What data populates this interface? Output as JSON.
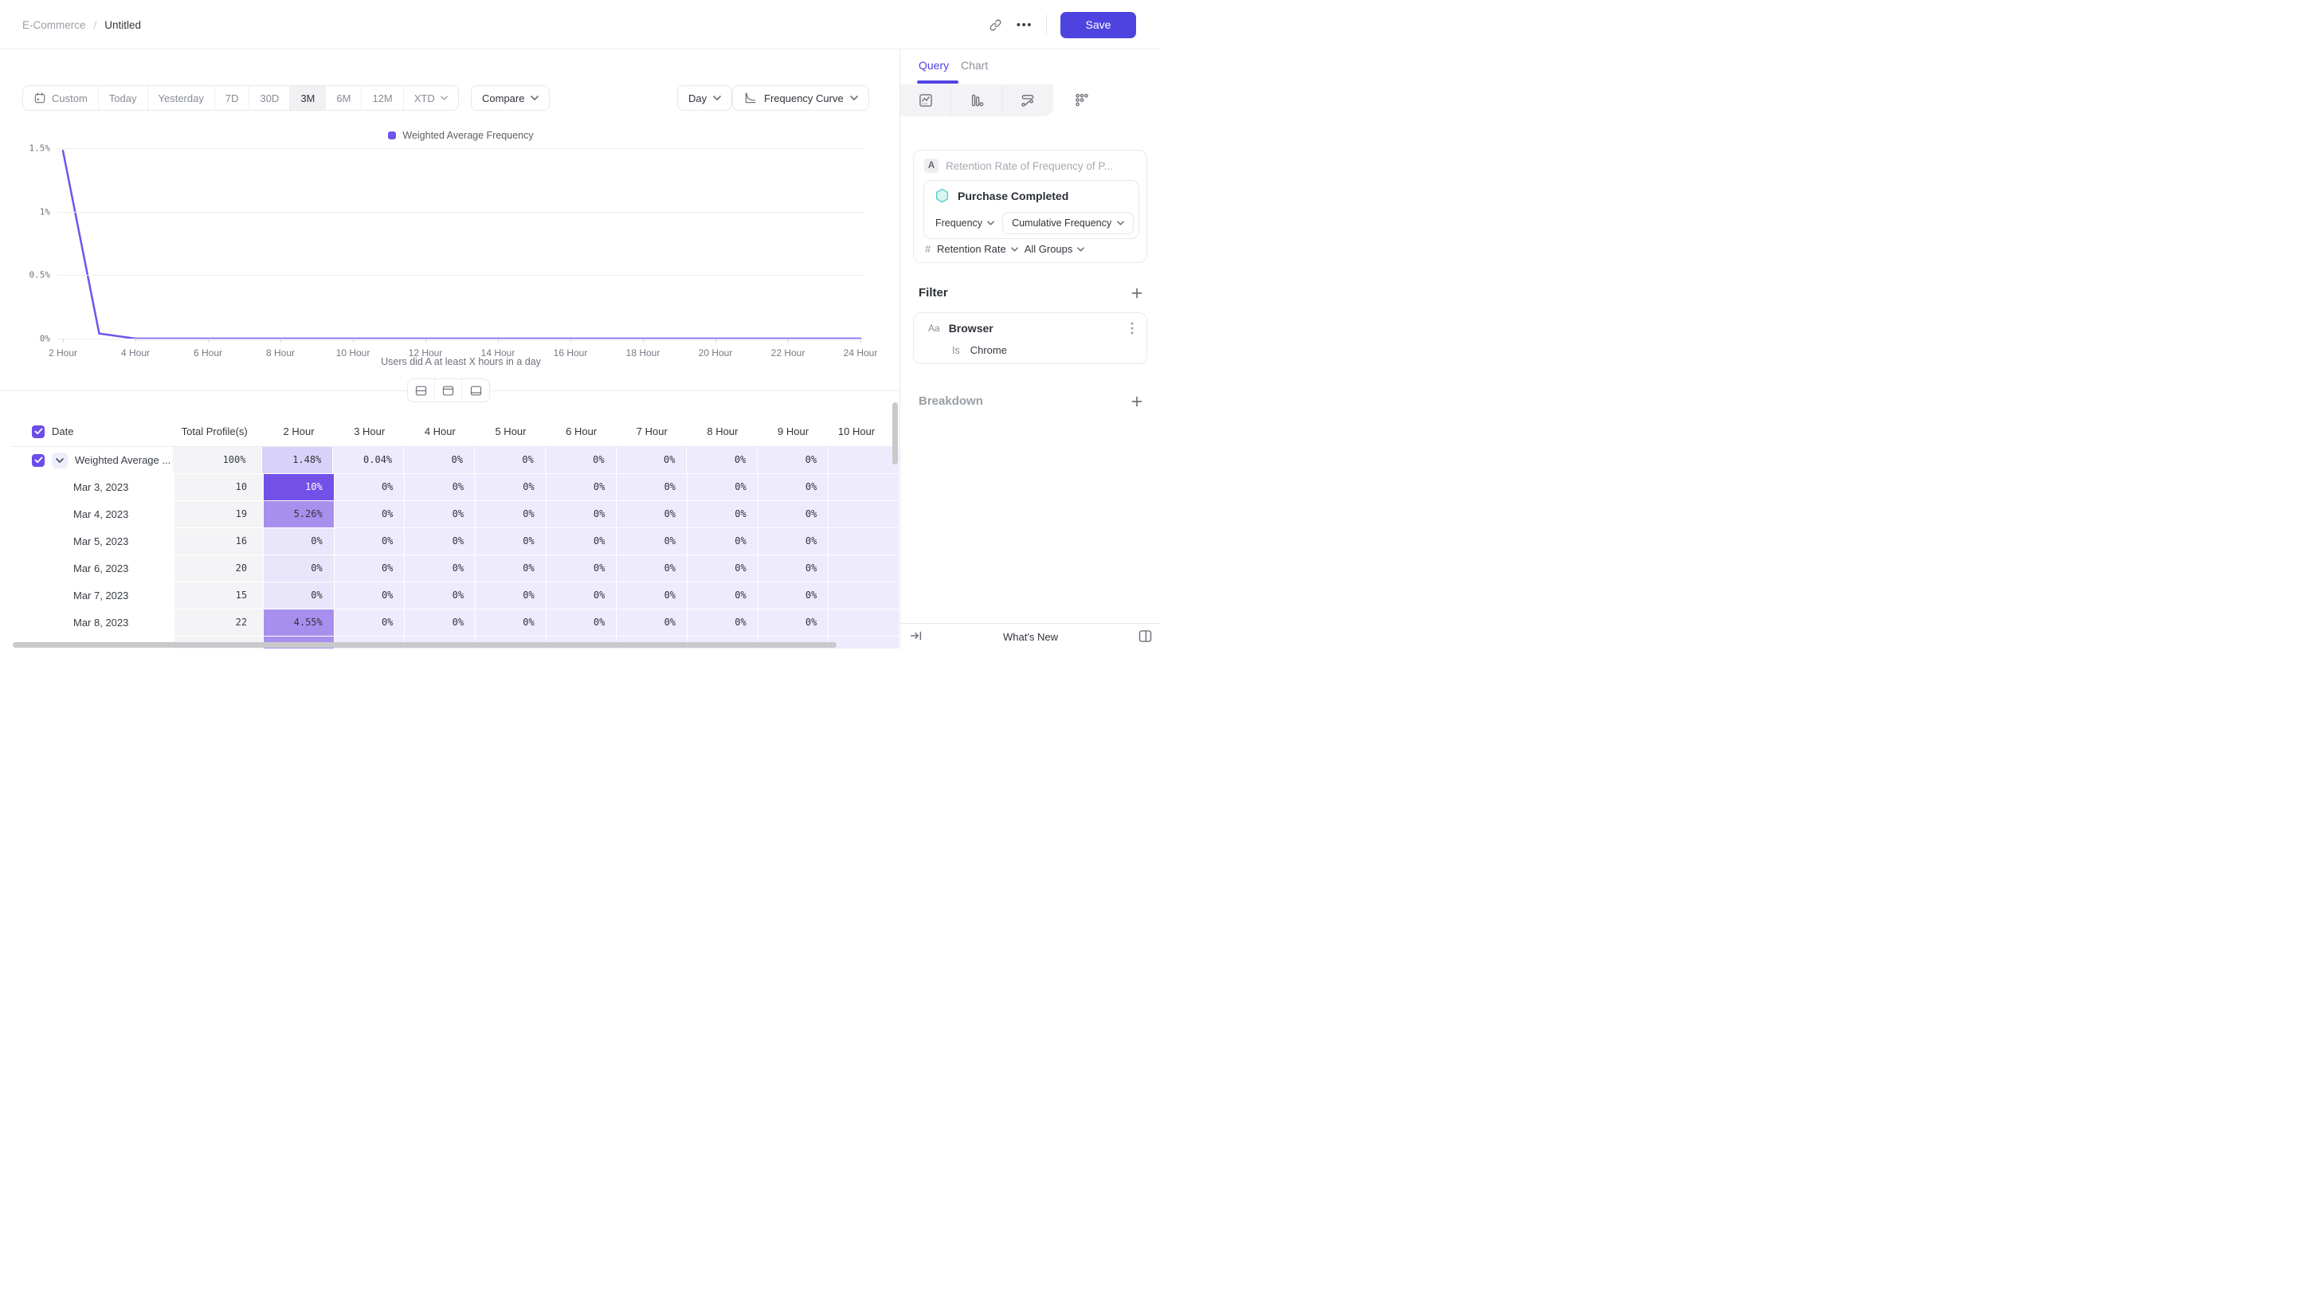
{
  "colors": {
    "accent": "#4f43e0",
    "query_tab": "#5244e1",
    "line": "#7253ec",
    "teal": "#4fd1c5",
    "cell_strong": "#7350e8",
    "cell_medium": "#a78fee",
    "cell_soft": "#d9d2f8",
    "cell_light": "#edebfc"
  },
  "header": {
    "breadcrumb_parent": "E-Commerce",
    "breadcrumb_sep": "/",
    "breadcrumb_current": "Untitled",
    "more_glyph": "•••",
    "save_label": "Save"
  },
  "toolbar": {
    "ranges": [
      {
        "label": "Custom",
        "icon": "calendar"
      },
      {
        "label": "Today"
      },
      {
        "label": "Yesterday"
      },
      {
        "label": "7D"
      },
      {
        "label": "30D"
      },
      {
        "label": "3M",
        "selected": true
      },
      {
        "label": "6M"
      },
      {
        "label": "12M"
      },
      {
        "label": "XTD",
        "chevron": true
      }
    ],
    "compare_label": "Compare",
    "granularity_label": "Day",
    "view_label": "Frequency Curve"
  },
  "chart_data": {
    "type": "line",
    "legend": [
      {
        "label": "Weighted Average Frequency",
        "color": "#7253ec"
      }
    ],
    "x": [
      2,
      3,
      4,
      5,
      6,
      7,
      8,
      9,
      10,
      11,
      12,
      13,
      14,
      15,
      16,
      17,
      18,
      19,
      20,
      21,
      22,
      23,
      24
    ],
    "series": [
      {
        "name": "Weighted Average Frequency",
        "values": [
          1.48,
          0.04,
          0,
          0,
          0,
          0,
          0,
          0,
          0,
          0,
          0,
          0,
          0,
          0,
          0,
          0,
          0,
          0,
          0,
          0,
          0,
          0,
          0
        ]
      }
    ],
    "x_tick_labels": [
      "2 Hour",
      "4 Hour",
      "6 Hour",
      "8 Hour",
      "10 Hour",
      "12 Hour",
      "14 Hour",
      "16 Hour",
      "18 Hour",
      "20 Hour",
      "22 Hour",
      "24 Hour"
    ],
    "y_tick_labels": [
      "0%",
      "0.5%",
      "1%",
      "1.5%"
    ],
    "ylim": [
      0,
      1.5
    ],
    "xlabel": "Users did A at least X hours in a day",
    "grid": "horizontal",
    "legend_position": "top-center"
  },
  "view_toggle": [
    "split-view",
    "table-top-view",
    "table-bottom-view"
  ],
  "table": {
    "columns": [
      "Date",
      "Total Profile(s)",
      "2 Hour",
      "3 Hour",
      "4 Hour",
      "5 Hour",
      "6 Hour",
      "7 Hour",
      "8 Hour",
      "9 Hour",
      "10 Hour"
    ],
    "rows": [
      {
        "label": "Weighted Average ...",
        "checkbox": true,
        "expander": true,
        "total": "100%",
        "values": [
          {
            "v": "1.48%",
            "hl": "soft"
          },
          {
            "v": "0.04%"
          },
          {
            "v": "0%"
          },
          {
            "v": "0%"
          },
          {
            "v": "0%"
          },
          {
            "v": "0%"
          },
          {
            "v": "0%"
          },
          {
            "v": "0%"
          }
        ]
      },
      {
        "label": "Mar 3, 2023",
        "total": "10",
        "values": [
          {
            "v": "10%",
            "hl": "strong"
          },
          {
            "v": "0%"
          },
          {
            "v": "0%"
          },
          {
            "v": "0%"
          },
          {
            "v": "0%"
          },
          {
            "v": "0%"
          },
          {
            "v": "0%"
          },
          {
            "v": "0%"
          }
        ]
      },
      {
        "label": "Mar 4, 2023",
        "total": "19",
        "values": [
          {
            "v": "5.26%",
            "hl": "medium"
          },
          {
            "v": "0%"
          },
          {
            "v": "0%"
          },
          {
            "v": "0%"
          },
          {
            "v": "0%"
          },
          {
            "v": "0%"
          },
          {
            "v": "0%"
          },
          {
            "v": "0%"
          }
        ]
      },
      {
        "label": "Mar 5, 2023",
        "total": "16",
        "values": [
          {
            "v": "0%"
          },
          {
            "v": "0%"
          },
          {
            "v": "0%"
          },
          {
            "v": "0%"
          },
          {
            "v": "0%"
          },
          {
            "v": "0%"
          },
          {
            "v": "0%"
          },
          {
            "v": "0%"
          }
        ]
      },
      {
        "label": "Mar 6, 2023",
        "total": "20",
        "values": [
          {
            "v": "0%"
          },
          {
            "v": "0%"
          },
          {
            "v": "0%"
          },
          {
            "v": "0%"
          },
          {
            "v": "0%"
          },
          {
            "v": "0%"
          },
          {
            "v": "0%"
          },
          {
            "v": "0%"
          }
        ]
      },
      {
        "label": "Mar 7, 2023",
        "total": "15",
        "values": [
          {
            "v": "0%"
          },
          {
            "v": "0%"
          },
          {
            "v": "0%"
          },
          {
            "v": "0%"
          },
          {
            "v": "0%"
          },
          {
            "v": "0%"
          },
          {
            "v": "0%"
          },
          {
            "v": "0%"
          }
        ]
      },
      {
        "label": "Mar 8, 2023",
        "total": "22",
        "values": [
          {
            "v": "4.55%",
            "hl": "medium"
          },
          {
            "v": "0%"
          },
          {
            "v": "0%"
          },
          {
            "v": "0%"
          },
          {
            "v": "0%"
          },
          {
            "v": "0%"
          },
          {
            "v": "0%"
          },
          {
            "v": "0%"
          }
        ]
      }
    ],
    "partial_row": {
      "first_cell_hl": "medium"
    }
  },
  "panel": {
    "tabs": [
      {
        "label": "Query",
        "selected": true
      },
      {
        "label": "Chart"
      }
    ],
    "chart_types": [
      "insights",
      "funnels",
      "flows",
      "retention"
    ],
    "selected_chart_type": "retention",
    "query": {
      "step_letter": "A",
      "step_title": "Retention Rate of Frequency of P...",
      "event": "Purchase Completed",
      "frequency_label": "Frequency",
      "frequency_value": "Cumulative Frequency",
      "measure_symbol": "#",
      "measure": "Retention Rate",
      "groups": "All Groups"
    },
    "filter": {
      "heading": "Filter",
      "type_badge": "Aa",
      "property": "Browser",
      "operator": "Is",
      "value": "Chrome"
    },
    "breakdown": {
      "heading": "Breakdown"
    },
    "footer": {
      "whats_new": "What's New"
    }
  }
}
